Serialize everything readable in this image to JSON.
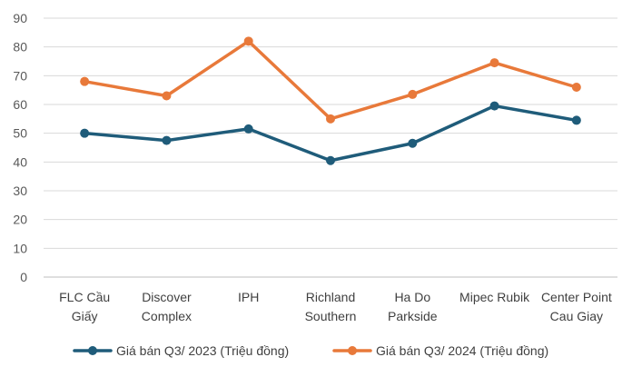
{
  "chart_data": {
    "type": "line",
    "categories": [
      [
        "FLC Cầu",
        "Giấy"
      ],
      [
        "Discover",
        "Complex"
      ],
      [
        "IPH"
      ],
      [
        "Richland",
        "Southern"
      ],
      [
        "Ha Do",
        "Parkside"
      ],
      [
        "Mipec Rubik"
      ],
      [
        "Center Point",
        "Cau Giay"
      ]
    ],
    "series": [
      {
        "name": "Giá bán Q3/ 2023 (Triệu đồng)",
        "color": "#1F5C7A",
        "values": [
          50,
          47.5,
          51.5,
          40.5,
          46.5,
          59.5,
          54.5
        ]
      },
      {
        "name": "Giá bán Q3/ 2024 (Triệu đồng)",
        "color": "#E8793A",
        "values": [
          68,
          63,
          82,
          55,
          63.5,
          74.5,
          66
        ]
      }
    ],
    "ylim": [
      0,
      90
    ],
    "yticks": [
      0,
      10,
      20,
      30,
      40,
      50,
      60,
      70,
      80,
      90
    ],
    "grid": true,
    "legend": "bottom"
  }
}
